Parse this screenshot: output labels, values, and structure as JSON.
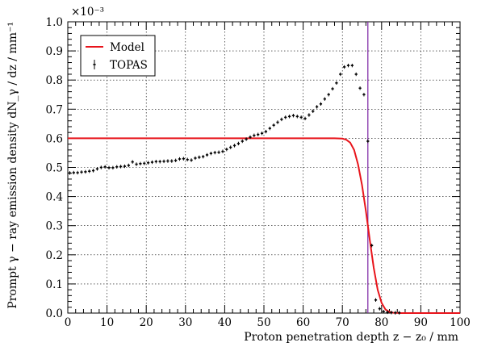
{
  "chart_data": {
    "type": "scatter",
    "title": "",
    "xlabel": "Proton penetration depth z − z₀ / mm",
    "ylabel": "Prompt γ − ray emission density dN_γ / dz / mm⁻¹",
    "y_exponent_label": "×10⁻³",
    "xlim": [
      0,
      100
    ],
    "ylim": [
      0,
      1.0
    ],
    "x_ticks": [
      "0",
      "10",
      "20",
      "30",
      "40",
      "50",
      "60",
      "70",
      "80",
      "90",
      "100"
    ],
    "y_ticks": [
      "0.0",
      "0.1",
      "0.2",
      "0.3",
      "0.4",
      "0.5",
      "0.6",
      "0.7",
      "0.8",
      "0.9",
      "1.0"
    ],
    "grid": true,
    "legend_position": "top-left",
    "colors": {
      "model": "#e8141b",
      "topas": "#000000",
      "marker_line": "#7a1fa2"
    },
    "vertical_marker_x": 76.5,
    "series": [
      {
        "name": "Model",
        "type": "line",
        "x": [
          0,
          10,
          20,
          30,
          40,
          50,
          60,
          66,
          68,
          70,
          71,
          72,
          73,
          74,
          75,
          76,
          77,
          78,
          79,
          80,
          81,
          82,
          83,
          85,
          90,
          100
        ],
        "y": [
          0.6,
          0.6,
          0.6,
          0.6,
          0.6,
          0.6,
          0.6,
          0.6,
          0.6,
          0.599,
          0.595,
          0.585,
          0.56,
          0.51,
          0.44,
          0.35,
          0.25,
          0.155,
          0.08,
          0.035,
          0.012,
          0.004,
          0.001,
          0.0,
          0.0,
          0.0
        ]
      },
      {
        "name": "TOPAS",
        "type": "errorbar",
        "x": [
          0.5,
          1.5,
          2.5,
          3.5,
          4.5,
          5.5,
          6.5,
          7.5,
          8.5,
          9.5,
          10.5,
          11.5,
          12.5,
          13.5,
          14.5,
          15.5,
          16.5,
          17.5,
          18.5,
          19.5,
          20.5,
          21.5,
          22.5,
          23.5,
          24.5,
          25.5,
          26.5,
          27.5,
          28.5,
          29.5,
          30.5,
          31.5,
          32.5,
          33.5,
          34.5,
          35.5,
          36.5,
          37.5,
          38.5,
          39.5,
          40.5,
          41.5,
          42.5,
          43.5,
          44.5,
          45.5,
          46.5,
          47.5,
          48.5,
          49.5,
          50.5,
          51.5,
          52.5,
          53.5,
          54.5,
          55.5,
          56.5,
          57.5,
          58.5,
          59.5,
          60.5,
          61.5,
          62.5,
          63.5,
          64.5,
          65.5,
          66.5,
          67.5,
          68.5,
          69.5,
          70.5,
          71.5,
          72.5,
          73.5,
          74.5,
          75.5,
          76.5,
          77.5,
          78.5,
          79.5,
          80.5,
          81.5,
          82.5,
          83.5,
          84.5
        ],
        "y": [
          0.481,
          0.482,
          0.482,
          0.484,
          0.485,
          0.487,
          0.489,
          0.495,
          0.5,
          0.502,
          0.499,
          0.499,
          0.502,
          0.503,
          0.504,
          0.507,
          0.519,
          0.511,
          0.513,
          0.514,
          0.516,
          0.518,
          0.52,
          0.52,
          0.521,
          0.522,
          0.522,
          0.524,
          0.529,
          0.53,
          0.527,
          0.525,
          0.532,
          0.535,
          0.537,
          0.543,
          0.548,
          0.551,
          0.552,
          0.555,
          0.562,
          0.569,
          0.575,
          0.582,
          0.59,
          0.597,
          0.604,
          0.61,
          0.613,
          0.617,
          0.623,
          0.634,
          0.645,
          0.655,
          0.665,
          0.672,
          0.675,
          0.678,
          0.675,
          0.672,
          0.668,
          0.68,
          0.693,
          0.708,
          0.718,
          0.735,
          0.75,
          0.77,
          0.79,
          0.82,
          0.845,
          0.85,
          0.85,
          0.82,
          0.772,
          0.75,
          0.59,
          0.232,
          0.045,
          0.015,
          0.005,
          0.003,
          0.002,
          0.001,
          0.001
        ]
      }
    ]
  }
}
